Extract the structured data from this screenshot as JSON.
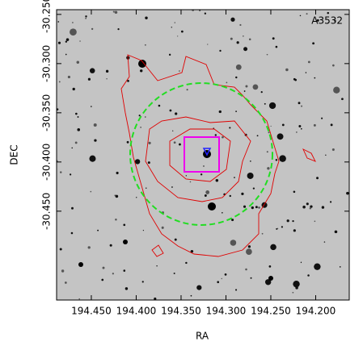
{
  "chart_data": {
    "type": "sky-image",
    "annotation": "A3532",
    "xlabel": "RA",
    "ylabel": "DEC",
    "xlim": [
      194.4887,
      194.1626
    ],
    "ylim": [
      -30.5403,
      -30.2452
    ],
    "xticks": [
      {
        "value": 194.45,
        "label": "194.450"
      },
      {
        "value": 194.4,
        "label": "194.400"
      },
      {
        "value": 194.35,
        "label": "194.350"
      },
      {
        "value": 194.3,
        "label": "194.300"
      },
      {
        "value": 194.25,
        "label": "194.250"
      },
      {
        "value": 194.2,
        "label": "194.200"
      }
    ],
    "yticks": [
      {
        "value": -30.25,
        "label": "-30.250"
      },
      {
        "value": -30.3,
        "label": "-30.300"
      },
      {
        "value": -30.35,
        "label": "-30.350"
      },
      {
        "value": -30.4,
        "label": "-30.400"
      },
      {
        "value": -30.45,
        "label": "-30.450"
      }
    ]
  }
}
